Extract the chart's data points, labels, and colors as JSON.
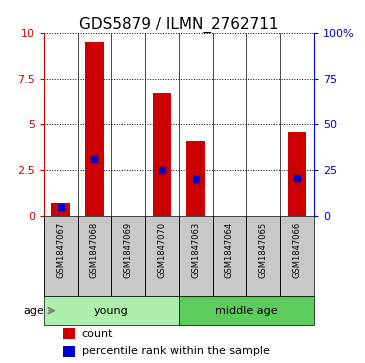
{
  "title": "GDS5879 / ILMN_2762711",
  "samples": [
    "GSM1847067",
    "GSM1847068",
    "GSM1847069",
    "GSM1847070",
    "GSM1847063",
    "GSM1847064",
    "GSM1847065",
    "GSM1847066"
  ],
  "counts": [
    0.7,
    9.5,
    0.0,
    6.7,
    4.1,
    0.0,
    0.0,
    4.6
  ],
  "percentiles": [
    5.0,
    31.0,
    0.0,
    25.0,
    20.0,
    0.0,
    0.0,
    21.0
  ],
  "groups": [
    {
      "label": "young",
      "start": 0,
      "end": 4,
      "color": "#adf0ad"
    },
    {
      "label": "middle age",
      "start": 4,
      "end": 8,
      "color": "#5ccc5c"
    }
  ],
  "ylim_left": [
    0,
    10
  ],
  "ylim_right": [
    0,
    100
  ],
  "yticks_left": [
    0,
    2.5,
    5,
    7.5,
    10
  ],
  "ytick_labels_left": [
    "0",
    "2.5",
    "5",
    "7.5",
    "10"
  ],
  "yticks_right": [
    0,
    25,
    50,
    75,
    100
  ],
  "ytick_labels_right": [
    "0",
    "25",
    "50",
    "75",
    "100%"
  ],
  "bar_color": "#cc0000",
  "dot_color": "#0000cc",
  "age_label": "age",
  "legend_count_label": "count",
  "legend_pct_label": "percentile rank within the sample",
  "grid_color": "#000000",
  "background_color": "#ffffff",
  "sample_box_color": "#c8c8c8",
  "title_fontsize": 11,
  "tick_fontsize": 8,
  "label_fontsize": 8,
  "sample_fontsize": 6
}
